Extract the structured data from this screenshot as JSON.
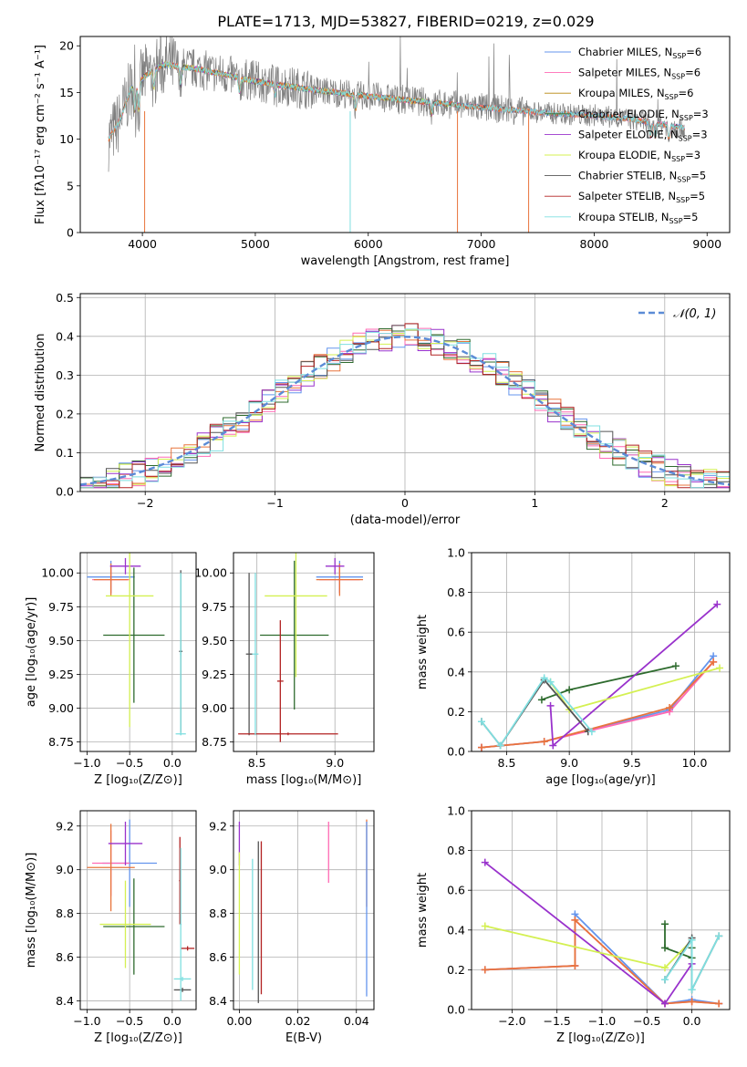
{
  "figure_title": "PLATE=1713, MJD=53827, FIBERID=0219, z=0.029",
  "colors": {
    "Chabrier MILES": "#6495ed",
    "Salpeter MILES": "#ff69b4",
    "Kroupa MILES": "#b8860b",
    "Chabrier ELODIE": "#2e6b2e",
    "Salpeter ELODIE": "#9932cc",
    "Kroupa ELODIE": "#d4f052",
    "Chabrier STELIB": "#555555",
    "Salpeter STELIB": "#b22222",
    "Kroupa STELIB": "#7fdfe0",
    "orange": "#e8743b"
  },
  "chart_data": [
    {
      "id": "spectrum",
      "type": "line",
      "xlabel": "wavelength [Angstrom, rest frame]",
      "ylabel": "Flux [fλ10⁻¹⁷ erg cm⁻² s⁻¹ A⁻¹]",
      "xlim": [
        3450,
        9200
      ],
      "ylim": [
        0,
        21
      ],
      "xticks": [
        4000,
        5000,
        6000,
        7000,
        8000,
        9000
      ],
      "yticks": [
        0,
        5,
        10,
        15,
        20
      ],
      "legend_position": "top-right",
      "legend": [
        {
          "label": "Chabrier MILES, N",
          "sub": "SSP",
          "tail": "=6",
          "color": "#6495ed"
        },
        {
          "label": "Salpeter MILES, N",
          "sub": "SSP",
          "tail": "=6",
          "color": "#ff69b4"
        },
        {
          "label": "Kroupa MILES, N",
          "sub": "SSP",
          "tail": "=6",
          "color": "#b8860b"
        },
        {
          "label": "Chabrier ELODIE, N",
          "sub": "SSP",
          "tail": "=3",
          "color": "#2e6b2e"
        },
        {
          "label": "Salpeter ELODIE, N",
          "sub": "SSP",
          "tail": "=3",
          "color": "#9932cc"
        },
        {
          "label": "Kroupa ELODIE, N",
          "sub": "SSP",
          "tail": "=3",
          "color": "#d4f052"
        },
        {
          "label": "Chabrier STELIB, N",
          "sub": "SSP",
          "tail": "=5",
          "color": "#555555"
        },
        {
          "label": "Salpeter STELIB, N",
          "sub": "SSP",
          "tail": "=5",
          "color": "#b22222"
        },
        {
          "label": "Kroupa STELIB, N",
          "sub": "SSP",
          "tail": "=5",
          "color": "#7fdfe0"
        }
      ],
      "continuum": {
        "x": [
          3700,
          3800,
          3900,
          4000,
          4100,
          4200,
          4500,
          5000,
          5500,
          6000,
          6500,
          7000,
          7400,
          7600,
          8000,
          8300,
          8600,
          8800
        ],
        "y": [
          10,
          12,
          15.5,
          16.5,
          17.5,
          18.0,
          17.5,
          16.2,
          15.3,
          14.6,
          14.0,
          13.4,
          13.0,
          12.8,
          12.5,
          12.2,
          11.6,
          11.2
        ]
      }
    },
    {
      "id": "residuals",
      "type": "histogram",
      "xlabel": "(data-model)/error",
      "ylabel": "Normed distribution",
      "xlim": [
        -2.5,
        2.5
      ],
      "ylim": [
        0,
        0.51
      ],
      "xticks": [
        -2,
        -1,
        0,
        1,
        2
      ],
      "yticks": [
        0.0,
        0.1,
        0.2,
        0.3,
        0.4,
        0.5
      ],
      "legend_position": "top-right",
      "legend_label": "𝒩(0, 1)",
      "gaussian": {
        "mean": 0,
        "sigma": 1,
        "color": "#5b8bd6"
      },
      "bin_width": 0.1
    },
    {
      "id": "age_vs_Z",
      "type": "errorbar",
      "xlabel": "Z [log₁₀(Z/Z⊙)]",
      "ylabel": "age  [log₁₀(age/yr)]",
      "xlim": [
        -1.08,
        0.28
      ],
      "ylim": [
        8.68,
        10.15
      ],
      "xticks": [
        -1.0,
        -0.5,
        0.0
      ],
      "yticks": [
        8.75,
        9.0,
        9.25,
        9.5,
        9.75,
        10.0
      ],
      "points": [
        {
          "x": -0.72,
          "xerr": 0.28,
          "y": 9.97,
          "yerr": 0.12,
          "color": "#6495ed"
        },
        {
          "x": -0.72,
          "xerr": 0.22,
          "y": 9.95,
          "yerr": 0.1,
          "color": "#ff69b4"
        },
        {
          "x": -0.72,
          "xerr": 0.2,
          "y": 9.95,
          "yerr": 0.12,
          "color": "#e8743b"
        },
        {
          "x": -0.45,
          "xerr": 0.36,
          "y": 9.54,
          "yerr": 0.5,
          "color": "#2e6b2e"
        },
        {
          "x": -0.55,
          "xerr": 0.18,
          "y": 10.05,
          "yerr": 0.06,
          "color": "#9932cc"
        },
        {
          "x": -0.5,
          "xerr": 0.28,
          "y": 9.83,
          "yerr": 0.97,
          "color": "#d4f052"
        },
        {
          "x": 0.1,
          "xerr": 0.02,
          "y": 9.42,
          "yerr": 0.6,
          "color": "#555555"
        },
        {
          "x": 0.1,
          "xerr": 0.06,
          "y": 8.81,
          "yerr": 0.01,
          "color": "#7fdfe0"
        },
        {
          "x": 0.1,
          "xerr": 0.01,
          "y": 9.4,
          "yerr": 0.6,
          "color": "#7fdfe0"
        }
      ]
    },
    {
      "id": "age_vs_mass",
      "type": "errorbar",
      "xlabel": "mass [log₁₀(M/M⊙)]",
      "ylabel": "",
      "xlim": [
        8.35,
        9.25
      ],
      "ylim": [
        8.68,
        10.15
      ],
      "xticks": [
        8.5,
        9.0
      ],
      "yticks": [
        8.75,
        9.0,
        9.25,
        9.5,
        9.75,
        10.0
      ],
      "points": [
        {
          "x": 9.03,
          "xerr": 0.15,
          "y": 9.97,
          "yerr": 0.12,
          "color": "#6495ed"
        },
        {
          "x": 9.03,
          "xerr": 0.13,
          "y": 9.95,
          "yerr": 0.1,
          "color": "#ff69b4"
        },
        {
          "x": 9.03,
          "xerr": 0.15,
          "y": 9.95,
          "yerr": 0.12,
          "color": "#e8743b"
        },
        {
          "x": 8.74,
          "xerr": 0.22,
          "y": 9.54,
          "yerr": 0.55,
          "color": "#2e6b2e"
        },
        {
          "x": 9.0,
          "xerr": 0.06,
          "y": 10.05,
          "yerr": 0.06,
          "color": "#9932cc"
        },
        {
          "x": 8.75,
          "xerr": 0.2,
          "y": 9.83,
          "yerr": 0.6,
          "color": "#d4f052"
        },
        {
          "x": 8.45,
          "xerr": 0.02,
          "y": 9.4,
          "yerr": 0.6,
          "color": "#555555"
        },
        {
          "x": 8.7,
          "xerr": 0.32,
          "y": 8.81,
          "yerr": 0.01,
          "color": "#b22222"
        },
        {
          "x": 8.65,
          "xerr": 0.02,
          "y": 9.2,
          "yerr": 0.45,
          "color": "#b22222"
        },
        {
          "x": 8.49,
          "xerr": 0.02,
          "y": 9.4,
          "yerr": 0.6,
          "color": "#7fdfe0"
        }
      ]
    },
    {
      "id": "mass_weight_vs_age",
      "type": "line",
      "xlabel": "age  [log₁₀(age/yr)]",
      "ylabel": "mass weight",
      "xlim": [
        8.22,
        10.28
      ],
      "ylim": [
        0,
        1.0
      ],
      "xticks": [
        8.5,
        9.0,
        9.5,
        10.0
      ],
      "yticks": [
        0.0,
        0.2,
        0.4,
        0.6,
        0.8,
        1.0
      ],
      "series": [
        {
          "color": "#6495ed",
          "x": [
            8.3,
            8.8,
            9.8,
            10.15
          ],
          "y": [
            0.02,
            0.05,
            0.21,
            0.48
          ]
        },
        {
          "color": "#ff69b4",
          "x": [
            8.3,
            8.8,
            9.8,
            10.15
          ],
          "y": [
            0.02,
            0.05,
            0.2,
            0.45
          ]
        },
        {
          "color": "#e8743b",
          "x": [
            8.3,
            8.8,
            9.8,
            10.15
          ],
          "y": [
            0.02,
            0.05,
            0.22,
            0.45
          ]
        },
        {
          "color": "#2e6b2e",
          "x": [
            8.78,
            9.0,
            9.85
          ],
          "y": [
            0.26,
            0.31,
            0.43
          ]
        },
        {
          "color": "#9932cc",
          "x": [
            8.85,
            8.87,
            10.18
          ],
          "y": [
            0.23,
            0.03,
            0.74
          ]
        },
        {
          "color": "#d4f052",
          "x": [
            8.85,
            9.0,
            10.2
          ],
          "y": [
            0.35,
            0.21,
            0.42
          ]
        },
        {
          "color": "#555555",
          "x": [
            8.3,
            8.45,
            8.8,
            9.15
          ],
          "y": [
            0.15,
            0.03,
            0.36,
            0.1
          ]
        },
        {
          "color": "#7fdfe0",
          "x": [
            8.3,
            8.45,
            8.8,
            8.85,
            9.18
          ],
          "y": [
            0.15,
            0.03,
            0.37,
            0.35,
            0.1
          ]
        }
      ]
    },
    {
      "id": "mass_vs_Z",
      "type": "errorbar",
      "xlabel": "Z [log₁₀(Z/Z⊙)]",
      "ylabel": "mass [log₁₀(M/M⊙)]",
      "xlim": [
        -1.08,
        0.28
      ],
      "ylim": [
        8.36,
        9.27
      ],
      "xticks": [
        -1.0,
        -0.5,
        0.0
      ],
      "yticks": [
        8.4,
        8.6,
        8.8,
        9.0,
        9.2
      ],
      "points": [
        {
          "x": -0.5,
          "xerr": 0.32,
          "y": 9.03,
          "yerr": 0.2,
          "color": "#6495ed"
        },
        {
          "x": -0.72,
          "xerr": 0.22,
          "y": 9.03,
          "yerr": 0.15,
          "color": "#ff69b4"
        },
        {
          "x": -0.72,
          "xerr": 0.28,
          "y": 9.01,
          "yerr": 0.2,
          "color": "#e8743b"
        },
        {
          "x": -0.45,
          "xerr": 0.36,
          "y": 8.74,
          "yerr": 0.22,
          "color": "#2e6b2e"
        },
        {
          "x": -0.55,
          "xerr": 0.2,
          "y": 9.12,
          "yerr": 0.1,
          "color": "#9932cc"
        },
        {
          "x": -0.55,
          "xerr": 0.3,
          "y": 8.75,
          "yerr": 0.2,
          "color": "#d4f052"
        },
        {
          "x": 0.12,
          "xerr": 0.1,
          "y": 8.45,
          "yerr": 0.01,
          "color": "#555555"
        },
        {
          "x": 0.18,
          "xerr": 0.08,
          "y": 8.64,
          "yerr": 0.01,
          "color": "#b22222"
        },
        {
          "x": 0.09,
          "xerr": 0.01,
          "y": 8.95,
          "yerr": 0.2,
          "color": "#b22222"
        },
        {
          "x": 0.12,
          "xerr": 0.1,
          "y": 8.5,
          "yerr": 0.01,
          "color": "#7fdfe0"
        },
        {
          "x": 0.1,
          "xerr": 0.01,
          "y": 8.75,
          "yerr": 0.35,
          "color": "#7fdfe0"
        }
      ]
    },
    {
      "id": "mass_vs_ebv",
      "type": "errorbar",
      "xlabel": "E(B-V)",
      "ylabel": "",
      "xlim": [
        -0.002,
        0.046
      ],
      "ylim": [
        8.36,
        9.27
      ],
      "xticks": [
        0.0,
        0.02,
        0.04
      ],
      "yticks": [
        8.4,
        8.6,
        8.8,
        9.0,
        9.2
      ],
      "points": [
        {
          "x": 0.0,
          "y": 9.12,
          "yerr": 0.1,
          "color": "#9932cc"
        },
        {
          "x": 0.0,
          "y": 8.8,
          "yerr": 0.28,
          "color": "#d4f052"
        },
        {
          "x": 0.0045,
          "y": 8.75,
          "yerr": 0.3,
          "color": "#7fdfe0"
        },
        {
          "x": 0.0065,
          "y": 8.76,
          "yerr": 0.37,
          "color": "#555555"
        },
        {
          "x": 0.0075,
          "y": 8.78,
          "yerr": 0.35,
          "color": "#b22222"
        },
        {
          "x": 0.0305,
          "y": 9.08,
          "yerr": 0.14,
          "color": "#ff69b4"
        },
        {
          "x": 0.0435,
          "y": 9.03,
          "yerr": 0.2,
          "color": "#e8743b"
        },
        {
          "x": 0.0435,
          "y": 8.82,
          "yerr": 0.4,
          "color": "#6495ed"
        }
      ]
    },
    {
      "id": "mass_weight_vs_Z",
      "type": "line",
      "xlabel": "Z [log₁₀(Z/Z⊙)]",
      "ylabel": "mass weight",
      "xlim": [
        -2.45,
        0.42
      ],
      "ylim": [
        0,
        1.0
      ],
      "xticks": [
        -2.0,
        -1.5,
        -1.0,
        -0.5,
        0.0
      ],
      "yticks": [
        0.0,
        0.2,
        0.4,
        0.6,
        0.8,
        1.0
      ],
      "series": [
        {
          "color": "#6495ed",
          "x": [
            -2.3,
            -1.3,
            -1.3,
            -0.3,
            0.0,
            0.3
          ],
          "y": [
            0.2,
            0.22,
            0.48,
            0.03,
            0.05,
            0.03
          ]
        },
        {
          "color": "#ff69b4",
          "x": [
            -2.3,
            -1.3,
            -1.3,
            -0.3,
            0.0,
            0.3
          ],
          "y": [
            0.2,
            0.22,
            0.45,
            0.03,
            0.04,
            0.03
          ]
        },
        {
          "color": "#e8743b",
          "x": [
            -2.3,
            -1.3,
            -1.3,
            -0.3,
            0.0,
            0.3
          ],
          "y": [
            0.2,
            0.22,
            0.45,
            0.03,
            0.04,
            0.03
          ]
        },
        {
          "color": "#2e6b2e",
          "x": [
            -0.3,
            -0.3,
            0.0,
            0.0
          ],
          "y": [
            0.43,
            0.31,
            0.26,
            0.31
          ]
        },
        {
          "color": "#9932cc",
          "x": [
            -2.3,
            -0.3,
            0.0
          ],
          "y": [
            0.74,
            0.03,
            0.23
          ]
        },
        {
          "color": "#d4f052",
          "x": [
            -2.3,
            -0.3,
            0.0
          ],
          "y": [
            0.42,
            0.21,
            0.35
          ]
        },
        {
          "color": "#555555",
          "x": [
            -0.3,
            0.0,
            0.0,
            0.3
          ],
          "y": [
            0.15,
            0.36,
            0.1,
            0.37
          ]
        },
        {
          "color": "#7fdfe0",
          "x": [
            -0.3,
            0.0,
            0.0,
            0.3
          ],
          "y": [
            0.15,
            0.35,
            0.1,
            0.37
          ]
        }
      ]
    }
  ]
}
